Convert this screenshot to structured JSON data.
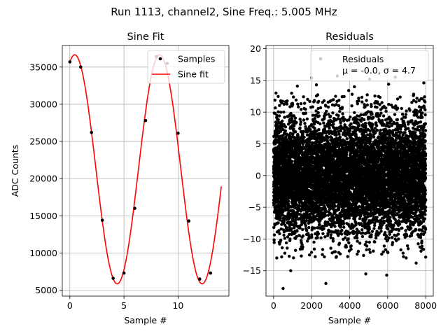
{
  "suptitle": "Run 1113, channel2, Sine Freq.: 5.005 MHz",
  "chart_data": [
    {
      "type": "line",
      "title": "Sine Fit",
      "xlabel": "Sample #",
      "ylabel": "ADC Counts",
      "xlim": [
        -0.7,
        14.7
      ],
      "ylim": [
        4200,
        37900
      ],
      "xticks": [
        0,
        5,
        10
      ],
      "yticks": [
        5000,
        10000,
        15000,
        20000,
        25000,
        30000,
        35000
      ],
      "grid": true,
      "legend": {
        "placement": "top-right",
        "entries": [
          "Samples",
          "Sine fit"
        ]
      },
      "series": [
        {
          "name": "Samples",
          "style": "scatter",
          "color": "#000000",
          "x": [
            0,
            1,
            2,
            3,
            4,
            5,
            6,
            7,
            8,
            9,
            10,
            11,
            12,
            13
          ],
          "y": [
            35700,
            35000,
            26200,
            14400,
            6600,
            7300,
            16000,
            27800,
            36400,
            35500,
            26100,
            14300,
            6500,
            7300
          ]
        },
        {
          "name": "Sine fit",
          "style": "line",
          "color": "#ff0000",
          "function": {
            "offset": 21250,
            "amplitude": 15400,
            "period": 7.85,
            "peak_x": 0.45,
            "x_range": [
              0,
              14
            ]
          }
        }
      ]
    },
    {
      "type": "scatter",
      "title": "Residuals",
      "xlabel": "Sample #",
      "ylabel": "",
      "xlim": [
        -400,
        8400
      ],
      "ylim": [
        -19,
        20.5
      ],
      "xticks": [
        0,
        2000,
        4000,
        6000,
        8000
      ],
      "yticks": [
        -15,
        -10,
        -5,
        0,
        5,
        10,
        15,
        20
      ],
      "grid": true,
      "legend": {
        "placement": "top-right",
        "entries": [
          "Residuals",
          "μ = -0.0, σ = 4.7"
        ]
      },
      "series": [
        {
          "name": "Residuals",
          "color": "#000000",
          "n_points": 8000,
          "x_range": [
            0,
            8000
          ],
          "mean": -0.0,
          "std": 4.7,
          "outliers": [
            [
              500,
              -17.8
            ],
            [
              2750,
              -17.0
            ],
            [
              5950,
              -15.7
            ],
            [
              4850,
              -15.5
            ],
            [
              2000,
              15.4
            ],
            [
              3350,
              15.7
            ],
            [
              5050,
              15.2
            ],
            [
              6400,
              15.5
            ],
            [
              1250,
              14.1
            ],
            [
              2250,
              14.3
            ],
            [
              4250,
              14.0
            ],
            [
              3950,
              13.4
            ],
            [
              6050,
              14.4
            ],
            [
              7900,
              14.6
            ],
            [
              900,
              -15.0
            ],
            [
              7500,
              -13.8
            ]
          ]
        }
      ]
    }
  ]
}
